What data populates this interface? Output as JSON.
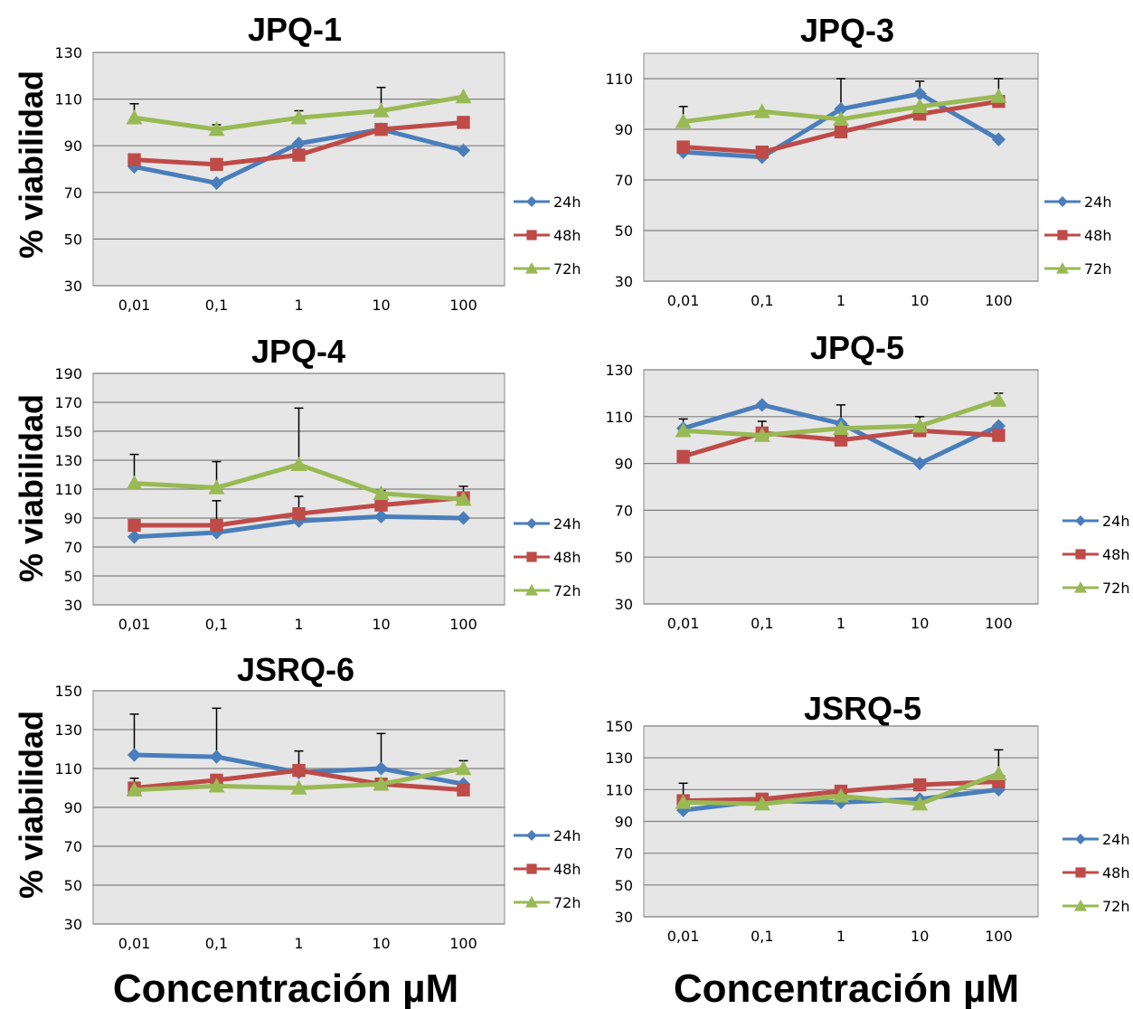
{
  "figure": {
    "y_axis_label": "% viabilidad",
    "x_axis_label": "Concentración µM",
    "colors": {
      "24h": "#4a7ebb",
      "48h": "#be4b48",
      "72h": "#98b954",
      "plot_bg": "#e6e6e6",
      "grid": "#7f7f7f"
    }
  },
  "chart_data": [
    {
      "type": "line",
      "title": "JPQ-1",
      "categories": [
        "0,01",
        "0,1",
        "1",
        "10",
        "100"
      ],
      "ylim": [
        30,
        130
      ],
      "yticks": [
        "30",
        "50",
        "70",
        "90",
        "110",
        "130"
      ],
      "grid": true,
      "legend_position": "right",
      "series": [
        {
          "name": "24h",
          "marker": "diamond",
          "values": [
            81,
            74,
            91,
            97,
            88
          ],
          "error": [
            null,
            null,
            null,
            null,
            null
          ]
        },
        {
          "name": "48h",
          "marker": "square",
          "values": [
            84,
            82,
            86,
            97,
            100
          ],
          "error": [
            null,
            null,
            null,
            null,
            null
          ]
        },
        {
          "name": "72h",
          "marker": "triangle",
          "values": [
            102,
            97,
            102,
            105,
            111
          ],
          "error": [
            6,
            2,
            3,
            10,
            null
          ]
        }
      ]
    },
    {
      "type": "line",
      "title": "JPQ-3",
      "categories": [
        "0,01",
        "0,1",
        "1",
        "10",
        "100"
      ],
      "ylim": [
        30,
        120
      ],
      "yticks": [
        "30",
        "50",
        "70",
        "90",
        "110"
      ],
      "grid": true,
      "legend_position": "right",
      "series": [
        {
          "name": "24h",
          "marker": "diamond",
          "values": [
            81,
            79,
            98,
            104,
            86
          ],
          "error": [
            null,
            null,
            12,
            5,
            null
          ]
        },
        {
          "name": "48h",
          "marker": "square",
          "values": [
            83,
            81,
            89,
            96,
            101
          ],
          "error": [
            null,
            null,
            null,
            null,
            null
          ]
        },
        {
          "name": "72h",
          "marker": "triangle",
          "values": [
            93,
            97,
            94,
            99,
            103
          ],
          "error": [
            6,
            null,
            null,
            null,
            7
          ]
        }
      ]
    },
    {
      "type": "line",
      "title": "JPQ-4",
      "categories": [
        "0,01",
        "0,1",
        "1",
        "10",
        "100"
      ],
      "ylim": [
        30,
        190
      ],
      "yticks": [
        "30",
        "50",
        "70",
        "90",
        "110",
        "130",
        "150",
        "170",
        "190"
      ],
      "grid": true,
      "legend_position": "right",
      "series": [
        {
          "name": "24h",
          "marker": "diamond",
          "values": [
            77,
            80,
            88,
            91,
            90
          ],
          "error": [
            null,
            null,
            null,
            null,
            null
          ]
        },
        {
          "name": "48h",
          "marker": "square",
          "values": [
            85,
            85,
            93,
            99,
            104
          ],
          "error": [
            null,
            17,
            12,
            10,
            8
          ]
        },
        {
          "name": "72h",
          "marker": "triangle",
          "values": [
            114,
            111,
            127,
            107,
            103
          ],
          "error": [
            20,
            18,
            39,
            null,
            null
          ]
        }
      ]
    },
    {
      "type": "line",
      "title": "JPQ-5",
      "categories": [
        "0,01",
        "0,1",
        "1",
        "10",
        "100"
      ],
      "ylim": [
        30,
        130
      ],
      "yticks": [
        "30",
        "50",
        "70",
        "90",
        "110",
        "130"
      ],
      "grid": true,
      "legend_position": "right",
      "series": [
        {
          "name": "24h",
          "marker": "diamond",
          "values": [
            105,
            115,
            107,
            90,
            106
          ],
          "error": [
            4,
            null,
            8,
            null,
            null
          ]
        },
        {
          "name": "48h",
          "marker": "square",
          "values": [
            93,
            103,
            100,
            104,
            102
          ],
          "error": [
            null,
            5,
            null,
            6,
            null
          ]
        },
        {
          "name": "72h",
          "marker": "triangle",
          "values": [
            104,
            102,
            105,
            106,
            117
          ],
          "error": [
            null,
            null,
            null,
            4,
            3
          ]
        }
      ]
    },
    {
      "type": "line",
      "title": "JSRQ-6",
      "categories": [
        "0,01",
        "0,1",
        "1",
        "10",
        "100"
      ],
      "ylim": [
        30,
        150
      ],
      "yticks": [
        "30",
        "50",
        "70",
        "90",
        "110",
        "130",
        "150"
      ],
      "grid": true,
      "legend_position": "right",
      "series": [
        {
          "name": "24h",
          "marker": "diamond",
          "values": [
            117,
            116,
            108,
            110,
            102
          ],
          "error": [
            21,
            25,
            null,
            18,
            null
          ]
        },
        {
          "name": "48h",
          "marker": "square",
          "values": [
            100,
            104,
            109,
            102,
            99
          ],
          "error": [
            5,
            null,
            10,
            null,
            null
          ]
        },
        {
          "name": "72h",
          "marker": "triangle",
          "values": [
            99,
            101,
            100,
            102,
            110
          ],
          "error": [
            null,
            null,
            null,
            null,
            4
          ]
        }
      ]
    },
    {
      "type": "line",
      "title": "JSRQ-5",
      "categories": [
        "0,01",
        "0,1",
        "1",
        "10",
        "100"
      ],
      "ylim": [
        30,
        150
      ],
      "yticks": [
        "30",
        "50",
        "70",
        "90",
        "110",
        "130",
        "150"
      ],
      "grid": true,
      "legend_position": "right",
      "series": [
        {
          "name": "24h",
          "marker": "diamond",
          "values": [
            97,
            103,
            102,
            104,
            110
          ],
          "error": [
            null,
            null,
            null,
            null,
            null
          ]
        },
        {
          "name": "48h",
          "marker": "square",
          "values": [
            103,
            104,
            109,
            113,
            115
          ],
          "error": [
            11,
            null,
            null,
            null,
            null
          ]
        },
        {
          "name": "72h",
          "marker": "triangle",
          "values": [
            102,
            101,
            106,
            101,
            120
          ],
          "error": [
            null,
            null,
            null,
            null,
            15
          ]
        }
      ]
    }
  ]
}
